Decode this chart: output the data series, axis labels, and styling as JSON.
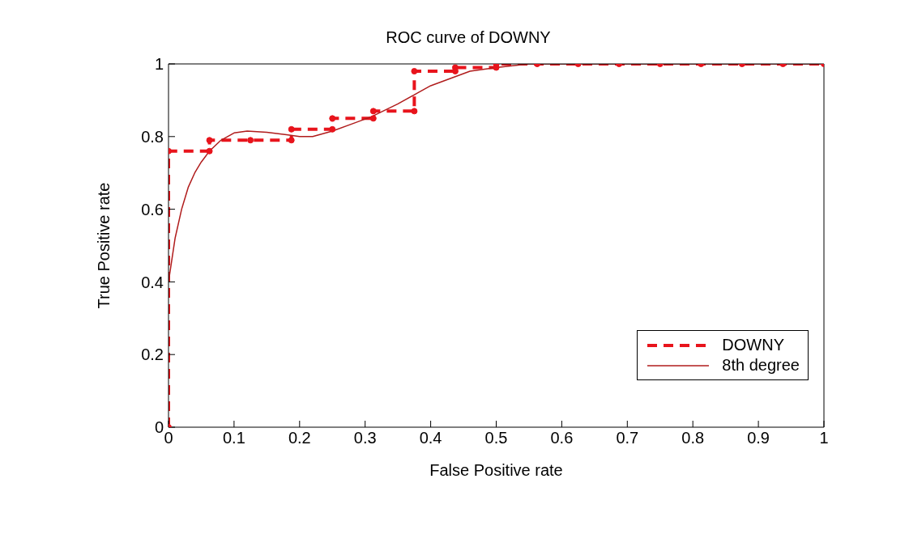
{
  "chart_data": {
    "type": "line",
    "title": "ROC curve of DOWNY",
    "xlabel": "False Positive rate",
    "ylabel": "True Positive rate",
    "xlim": [
      0,
      1
    ],
    "ylim": [
      0,
      1
    ],
    "xticks": [
      0,
      0.1,
      0.2,
      0.3,
      0.4,
      0.5,
      0.6,
      0.7,
      0.8,
      0.9,
      1
    ],
    "yticks": [
      0,
      0.2,
      0.4,
      0.6,
      0.8,
      1
    ],
    "legend": "bottom right",
    "series": [
      {
        "name": "DOWNY",
        "color": "#e8141c",
        "line_style": "dashed",
        "marker": "circle",
        "x": [
          0,
          0,
          0.0625,
          0.0625,
          0.125,
          0.1875,
          0.1875,
          0.25,
          0.25,
          0.3125,
          0.3125,
          0.375,
          0.375,
          0.4375,
          0.4375,
          0.5,
          0.5,
          0.5625,
          0.625,
          0.6875,
          0.75,
          0.8125,
          0.875,
          0.9375,
          1
        ],
        "values": [
          0,
          0.76,
          0.76,
          0.79,
          0.79,
          0.79,
          0.82,
          0.82,
          0.85,
          0.85,
          0.87,
          0.87,
          0.98,
          0.98,
          0.99,
          0.99,
          1,
          1,
          1,
          1,
          1,
          1,
          1,
          1,
          1
        ]
      },
      {
        "name": "8th degree",
        "color": "#b01c1c",
        "line_style": "solid",
        "marker": "none",
        "x": [
          0,
          0.01,
          0.02,
          0.03,
          0.04,
          0.05,
          0.0625,
          0.08,
          0.1,
          0.12,
          0.15,
          0.18,
          0.2,
          0.22,
          0.25,
          0.28,
          0.31,
          0.35,
          0.38,
          0.4,
          0.43,
          0.46,
          0.5,
          0.55,
          0.6,
          0.7,
          0.8,
          0.9,
          1
        ],
        "values": [
          0.4,
          0.52,
          0.6,
          0.66,
          0.7,
          0.73,
          0.76,
          0.79,
          0.81,
          0.815,
          0.812,
          0.805,
          0.8,
          0.8,
          0.815,
          0.835,
          0.855,
          0.89,
          0.92,
          0.94,
          0.96,
          0.98,
          0.99,
          1,
          1,
          1,
          1,
          1,
          1
        ]
      }
    ]
  }
}
